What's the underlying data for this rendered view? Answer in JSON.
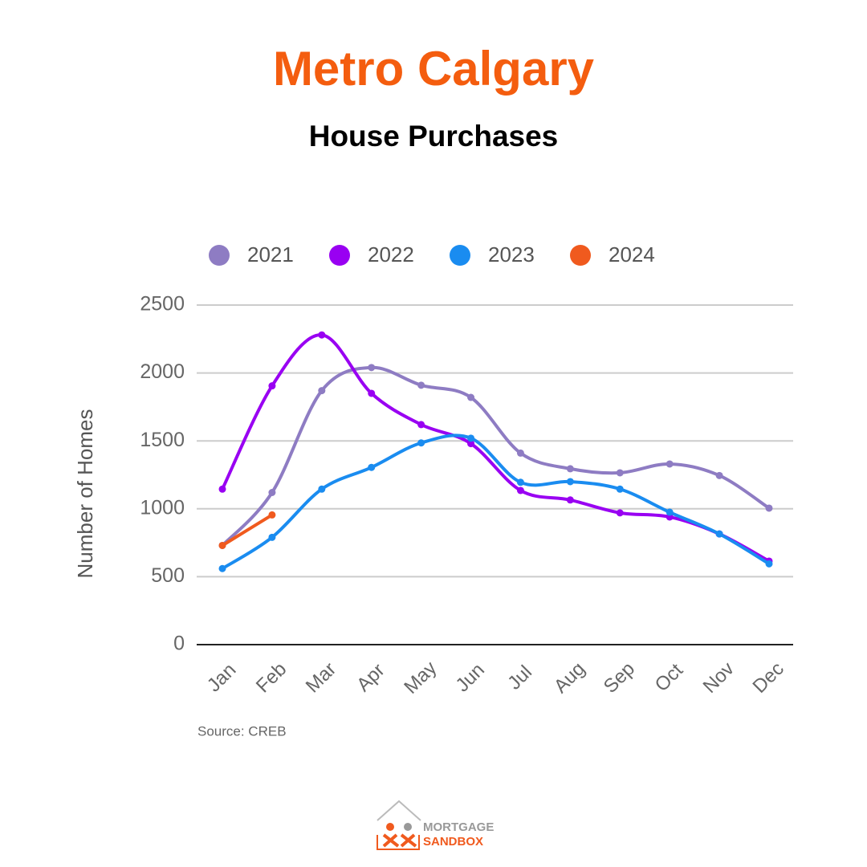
{
  "chart_data": {
    "type": "line",
    "title": "Metro Calgary",
    "subtitle": "House Purchases",
    "y_label": "Number of Homes",
    "source": "Source: CREB",
    "categories": [
      "Jan",
      "Feb",
      "Mar",
      "Apr",
      "May",
      "Jun",
      "Jul",
      "Aug",
      "Sep",
      "Oct",
      "Nov",
      "Dec"
    ],
    "series": [
      {
        "name": "2021",
        "color": "#8e7cc3",
        "values": [
          730,
          1120,
          1870,
          2040,
          1910,
          1820,
          1410,
          1295,
          1265,
          1330,
          1245,
          1005
        ]
      },
      {
        "name": "2022",
        "color": "#9900f2",
        "values": [
          1145,
          1905,
          2280,
          1850,
          1620,
          1480,
          1135,
          1065,
          970,
          940,
          815,
          615
        ]
      },
      {
        "name": "2023",
        "color": "#1a8cf0",
        "values": [
          560,
          790,
          1145,
          1305,
          1485,
          1520,
          1195,
          1200,
          1145,
          975,
          815,
          595
        ]
      },
      {
        "name": "2024",
        "color": "#f05a1e",
        "values": [
          730,
          955,
          null,
          null,
          null,
          null,
          null,
          null,
          null,
          null,
          null,
          null
        ]
      }
    ],
    "ylim": [
      0,
      2500
    ],
    "yticks": [
      0,
      500,
      1000,
      1500,
      2000,
      2500
    ],
    "grid": true,
    "legend": "top",
    "smooth": true
  },
  "logo": {
    "line1": "MORTGAGE",
    "line2": "SANDBOX"
  }
}
